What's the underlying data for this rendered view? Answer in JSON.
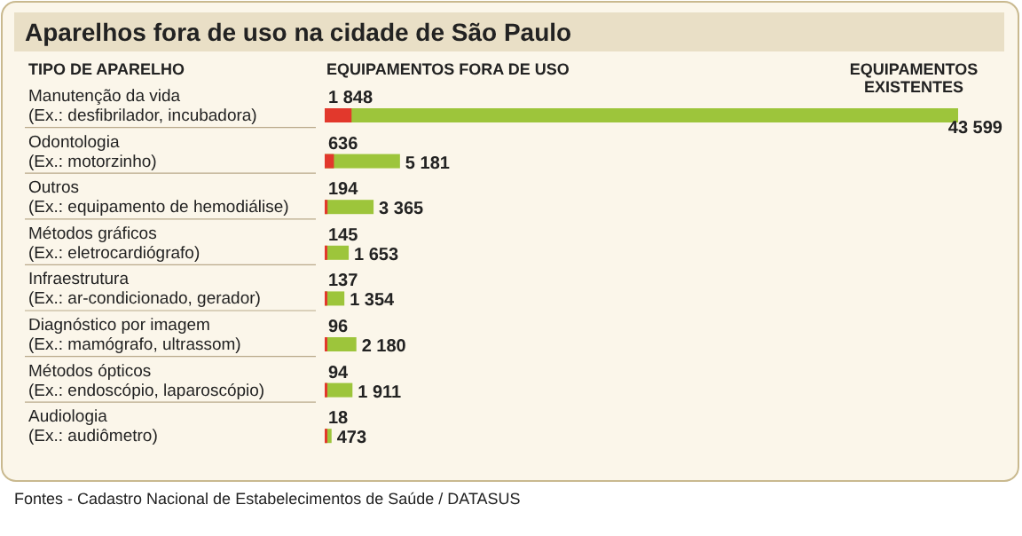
{
  "chart_data": {
    "type": "bar",
    "orientation": "horizontal",
    "title": "Aparelhos fora de uso na cidade de São Paulo",
    "ylabel": "TIPO DE APARELHO",
    "categories": [
      "Manutenção da vida\n(Ex.: desfibrilador, incubadora)",
      "Odontologia\n(Ex.: motorzinho)",
      "Outros\n(Ex.: equipamento de hemodiálise)",
      "Métodos gráficos\n(Ex.: eletrocardiógrafo)",
      "Infraestrutura\n(Ex.: ar-condicionado, gerador)",
      "Diagnóstico por imagem\n(Ex.: mamógrafo, ultrassom)",
      "Métodos ópticos\n(Ex.: endoscópio, laparoscópio)",
      "Audiologia\n(Ex.: audiômetro)"
    ],
    "series": [
      {
        "name": "EQUIPAMENTOS EXISTENTES",
        "color": "#9dc53b",
        "values": [
          43599,
          5181,
          3365,
          1653,
          1354,
          2180,
          1911,
          473
        ],
        "value_labels": [
          "43 599",
          "5 181",
          "3 365",
          "1 653",
          "1 354",
          "2 180",
          "1 911",
          "473"
        ]
      },
      {
        "name": "EQUIPAMENTOS FORA DE USO",
        "color": "#e2382c",
        "values": [
          1848,
          636,
          194,
          145,
          137,
          96,
          94,
          18
        ],
        "value_labels": [
          "1 848",
          "636",
          "194",
          "145",
          "137",
          "96",
          "94",
          "18"
        ]
      }
    ],
    "legend": "top",
    "annotations": [
      "Fontes - Cadastro Nacional de Estabelecimentos de Saúde / DATASUS"
    ]
  }
}
